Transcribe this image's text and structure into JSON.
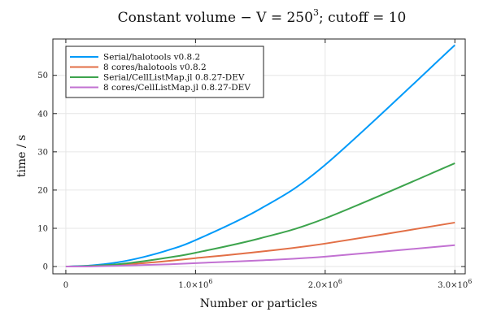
{
  "chart_data": {
    "type": "line",
    "title": "Constant volume − V = 250³; cutoff = 10",
    "title_parts": {
      "main": "Constant volume − V = 250",
      "sup": "3",
      "rest": "; cutoff = 10"
    },
    "xlabel": "Number or particles",
    "ylabel": "time / s",
    "xlim": [
      -100000,
      3080000
    ],
    "ylim": [
      -1.9,
      59.5
    ],
    "grid": true,
    "legend_position": "top-left",
    "x_ticks": [
      {
        "value": 0,
        "label": "0",
        "sup": ""
      },
      {
        "value": 1000000,
        "label": "1.0×10",
        "sup": "6"
      },
      {
        "value": 2000000,
        "label": "2.0×10",
        "sup": "6"
      },
      {
        "value": 3000000,
        "label": "3.0×10",
        "sup": "6"
      }
    ],
    "y_ticks": [
      {
        "value": 0,
        "label": "0"
      },
      {
        "value": 10,
        "label": "10"
      },
      {
        "value": 20,
        "label": "20"
      },
      {
        "value": 30,
        "label": "30"
      },
      {
        "value": 40,
        "label": "40"
      },
      {
        "value": 50,
        "label": "50"
      }
    ],
    "x": [
      0,
      200000,
      400000,
      600000,
      800000,
      1000000,
      1500000,
      2000000,
      3000000
    ],
    "series": [
      {
        "name": "Serial/halotools v0.8.2",
        "color": "#009af9",
        "values": [
          0,
          0.3,
          1.1,
          2.5,
          4.4,
          6.9,
          15.1,
          26.6,
          57.9
        ]
      },
      {
        "name": "8 cores/halotools v0.8.2",
        "color": "#e26f46",
        "values": [
          0,
          0.1,
          0.5,
          0.9,
          1.5,
          2.2,
          3.9,
          6.0,
          11.5
        ]
      },
      {
        "name": "Serial/CellListMap.jl 0.8.27-DEV",
        "color": "#3da44d",
        "values": [
          0,
          0.2,
          0.6,
          1.4,
          2.4,
          3.6,
          7.4,
          12.6,
          27.0
        ]
      },
      {
        "name": "8 cores/CellListMap.jl 0.8.27-DEV",
        "color": "#c271d2",
        "values": [
          0,
          0.05,
          0.2,
          0.4,
          0.6,
          0.9,
          1.6,
          2.6,
          5.6
        ]
      }
    ]
  }
}
